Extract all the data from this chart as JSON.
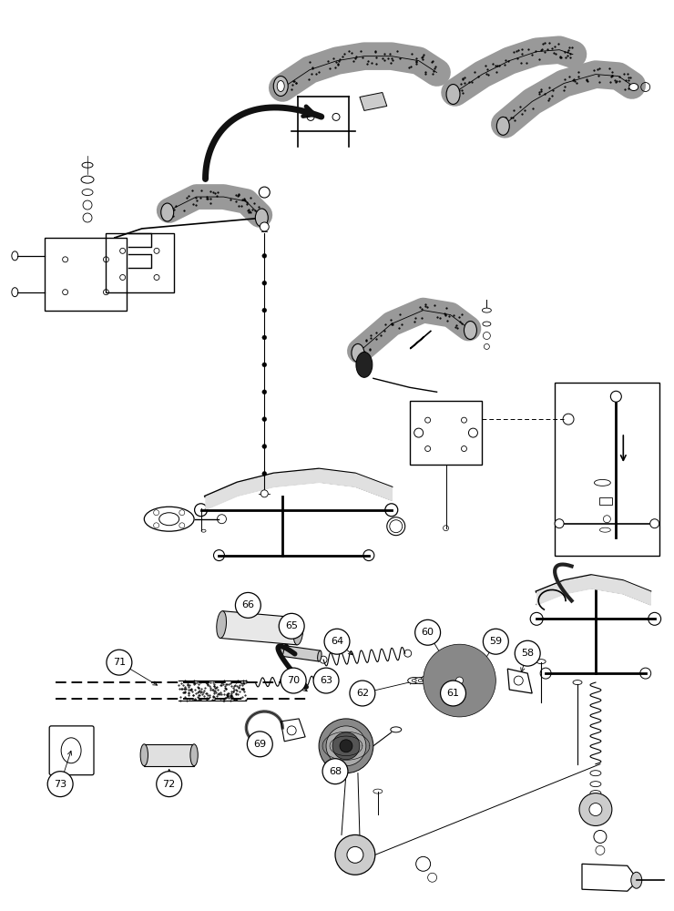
{
  "background_color": "#ffffff",
  "line_color": "#000000",
  "figure_width": 7.4,
  "figure_height": 10.0,
  "dpi": 100,
  "grip_color": "#888888",
  "light_gray": "#cccccc",
  "mid_gray": "#aaaaaa",
  "dark": "#111111"
}
